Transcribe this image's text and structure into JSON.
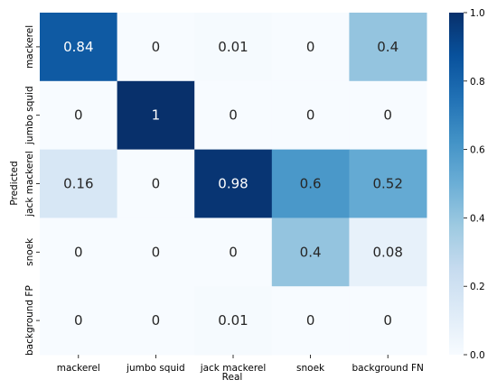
{
  "chart_data": {
    "type": "heatmap",
    "xlabel": "Real",
    "ylabel": "Predicted",
    "x_categories": [
      "mackerel",
      "jumbo squid",
      "jack mackerel",
      "snoek",
      "background FN"
    ],
    "y_categories": [
      "mackerel",
      "jumbo squid",
      "jack mackerel",
      "snoek",
      "background FP"
    ],
    "values": [
      [
        0.84,
        0,
        0.01,
        0,
        0.4
      ],
      [
        0,
        1,
        0,
        0,
        0
      ],
      [
        0.16,
        0,
        0.98,
        0.6,
        0.52
      ],
      [
        0,
        0,
        0,
        0.4,
        0.08
      ],
      [
        0,
        0,
        0.01,
        0,
        0
      ]
    ],
    "value_labels": [
      [
        "0.84",
        "0",
        "0.01",
        "0",
        "0.4"
      ],
      [
        "0",
        "1",
        "0",
        "0",
        "0"
      ],
      [
        "0.16",
        "0",
        "0.98",
        "0.6",
        "0.52"
      ],
      [
        "0",
        "0",
        "0",
        "0.4",
        "0.08"
      ],
      [
        "0",
        "0",
        "0.01",
        "0",
        "0"
      ]
    ],
    "colorbar": {
      "range": [
        0,
        1
      ],
      "ticks": [
        "0.0",
        "0.2",
        "0.4",
        "0.6",
        "0.8",
        "1.0"
      ],
      "colormap": "Blues"
    }
  }
}
